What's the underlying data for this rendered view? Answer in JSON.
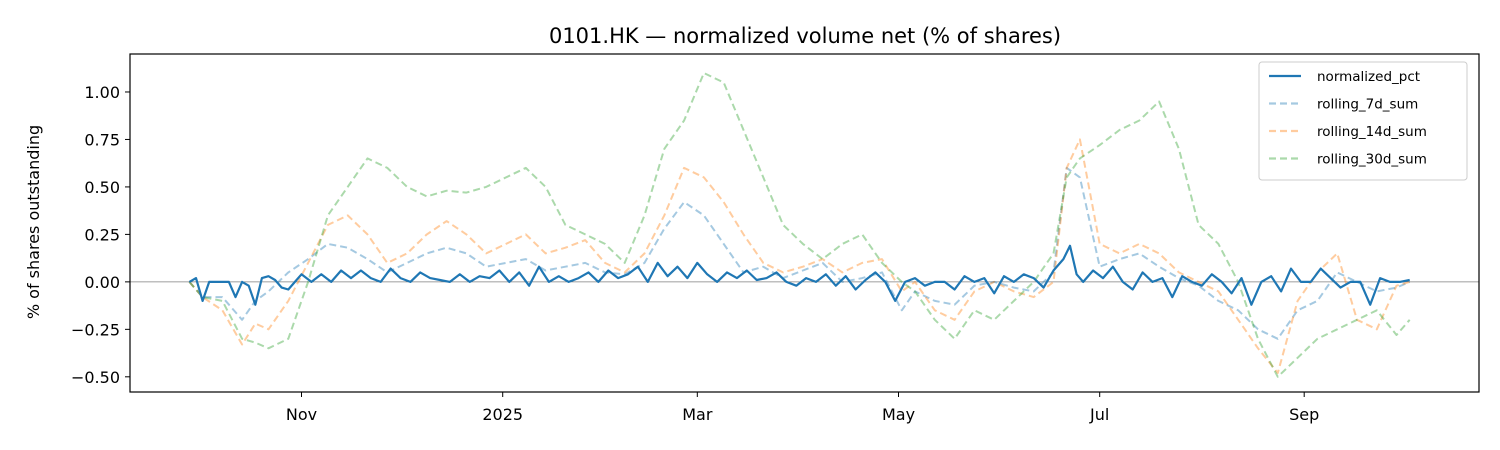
{
  "chart_data": {
    "type": "line",
    "title": "0101.HK — normalized volume net (% of shares)",
    "xlabel": "",
    "ylabel": "% of shares outstanding",
    "ylim": [
      -0.58,
      1.2
    ],
    "xlim": [
      "2024-09-10",
      "2025-10-24"
    ],
    "yticks": [
      -0.5,
      -0.25,
      0.0,
      0.25,
      0.5,
      0.75,
      1.0
    ],
    "ytick_labels": [
      "−0.50",
      "−0.25",
      "0.00",
      "0.25",
      "0.50",
      "0.75",
      "1.00"
    ],
    "xticks": [
      {
        "date": "2024-11-01",
        "label": "Nov"
      },
      {
        "date": "2025-01-01",
        "label": "2025"
      },
      {
        "date": "2025-03-01",
        "label": "Mar"
      },
      {
        "date": "2025-05-01",
        "label": "May"
      },
      {
        "date": "2025-07-01",
        "label": "Jul"
      },
      {
        "date": "2025-09-01",
        "label": "Sep"
      }
    ],
    "zero_line": true,
    "grid": false,
    "legend_position": "top-right",
    "series": [
      {
        "name": "normalized_pct",
        "color": "#1f77b4",
        "style": "solid",
        "x": [
          "2024-09-28",
          "2024-09-30",
          "2024-10-02",
          "2024-10-04",
          "2024-10-06",
          "2024-10-08",
          "2024-10-10",
          "2024-10-12",
          "2024-10-14",
          "2024-10-16",
          "2024-10-18",
          "2024-10-20",
          "2024-10-22",
          "2024-10-24",
          "2024-10-26",
          "2024-10-28",
          "2024-10-30",
          "2024-11-01",
          "2024-11-04",
          "2024-11-07",
          "2024-11-10",
          "2024-11-13",
          "2024-11-16",
          "2024-11-19",
          "2024-11-22",
          "2024-11-25",
          "2024-11-28",
          "2024-12-01",
          "2024-12-04",
          "2024-12-07",
          "2024-12-10",
          "2024-12-13",
          "2024-12-16",
          "2024-12-19",
          "2024-12-22",
          "2024-12-25",
          "2024-12-28",
          "2024-12-31",
          "2025-01-03",
          "2025-01-06",
          "2025-01-09",
          "2025-01-12",
          "2025-01-15",
          "2025-01-18",
          "2025-01-21",
          "2025-01-24",
          "2025-01-27",
          "2025-01-30",
          "2025-02-02",
          "2025-02-05",
          "2025-02-08",
          "2025-02-11",
          "2025-02-14",
          "2025-02-17",
          "2025-02-20",
          "2025-02-23",
          "2025-02-26",
          "2025-03-01",
          "2025-03-04",
          "2025-03-07",
          "2025-03-10",
          "2025-03-13",
          "2025-03-16",
          "2025-03-19",
          "2025-03-22",
          "2025-03-25",
          "2025-03-28",
          "2025-03-31",
          "2025-04-03",
          "2025-04-06",
          "2025-04-09",
          "2025-04-12",
          "2025-04-15",
          "2025-04-18",
          "2025-04-21",
          "2025-04-24",
          "2025-04-27",
          "2025-04-30",
          "2025-05-03",
          "2025-05-06",
          "2025-05-09",
          "2025-05-12",
          "2025-05-15",
          "2025-05-18",
          "2025-05-21",
          "2025-05-24",
          "2025-05-27",
          "2025-05-30",
          "2025-06-02",
          "2025-06-05",
          "2025-06-08",
          "2025-06-11",
          "2025-06-14",
          "2025-06-17",
          "2025-06-20",
          "2025-06-22",
          "2025-06-24",
          "2025-06-26",
          "2025-06-29",
          "2025-07-02",
          "2025-07-05",
          "2025-07-08",
          "2025-07-11",
          "2025-07-14",
          "2025-07-17",
          "2025-07-20",
          "2025-07-23",
          "2025-07-26",
          "2025-07-29",
          "2025-08-01",
          "2025-08-04",
          "2025-08-07",
          "2025-08-10",
          "2025-08-13",
          "2025-08-16",
          "2025-08-19",
          "2025-08-22",
          "2025-08-25",
          "2025-08-28",
          "2025-08-31",
          "2025-09-03",
          "2025-09-06",
          "2025-09-09",
          "2025-09-12",
          "2025-09-15",
          "2025-09-18",
          "2025-09-21",
          "2025-09-24",
          "2025-09-27",
          "2025-09-30",
          "2025-10-03"
        ],
        "values": [
          0.0,
          0.02,
          -0.1,
          0.0,
          0.0,
          0.0,
          0.0,
          -0.08,
          0.0,
          -0.02,
          -0.12,
          0.02,
          0.03,
          0.01,
          -0.03,
          -0.04,
          0.0,
          0.04,
          0.0,
          0.04,
          0.0,
          0.06,
          0.02,
          0.06,
          0.02,
          0.0,
          0.07,
          0.02,
          0.0,
          0.05,
          0.02,
          0.01,
          0.0,
          0.04,
          0.0,
          0.03,
          0.02,
          0.06,
          0.0,
          0.05,
          -0.02,
          0.08,
          0.0,
          0.03,
          0.0,
          0.02,
          0.05,
          0.0,
          0.06,
          0.02,
          0.04,
          0.08,
          0.0,
          0.1,
          0.03,
          0.08,
          0.02,
          0.1,
          0.04,
          0.0,
          0.05,
          0.02,
          0.06,
          0.01,
          0.02,
          0.05,
          0.0,
          -0.02,
          0.02,
          0.0,
          0.04,
          -0.02,
          0.03,
          -0.04,
          0.01,
          0.05,
          0.0,
          -0.1,
          0.0,
          0.02,
          -0.02,
          0.0,
          0.0,
          -0.04,
          0.03,
          0.0,
          0.02,
          -0.06,
          0.03,
          0.0,
          0.04,
          0.02,
          -0.03,
          0.06,
          0.12,
          0.19,
          0.04,
          0.0,
          0.06,
          0.02,
          0.08,
          0.0,
          -0.04,
          0.05,
          0.0,
          0.02,
          -0.08,
          0.03,
          0.0,
          -0.02,
          0.04,
          0.0,
          -0.06,
          0.02,
          -0.12,
          0.0,
          0.03,
          -0.05,
          0.07,
          0.0,
          0.0,
          0.07,
          0.02,
          -0.03,
          0.0,
          0.0,
          -0.12,
          0.02,
          0.0,
          0.0,
          0.01
        ]
      },
      {
        "name": "rolling_7d_sum",
        "color": "#1f77b4",
        "style": "dashed",
        "x": [
          "2024-09-28",
          "2024-10-02",
          "2024-10-08",
          "2024-10-14",
          "2024-10-18",
          "2024-10-22",
          "2024-10-28",
          "2024-11-03",
          "2024-11-09",
          "2024-11-15",
          "2024-11-21",
          "2024-11-27",
          "2024-12-03",
          "2024-12-09",
          "2024-12-15",
          "2024-12-21",
          "2024-12-27",
          "2025-01-02",
          "2025-01-08",
          "2025-01-14",
          "2025-01-20",
          "2025-01-26",
          "2025-02-01",
          "2025-02-07",
          "2025-02-13",
          "2025-02-19",
          "2025-02-25",
          "2025-03-03",
          "2025-03-09",
          "2025-03-15",
          "2025-03-21",
          "2025-03-27",
          "2025-04-02",
          "2025-04-08",
          "2025-04-14",
          "2025-04-20",
          "2025-04-26",
          "2025-05-02",
          "2025-05-06",
          "2025-05-12",
          "2025-05-18",
          "2025-05-24",
          "2025-05-30",
          "2025-06-05",
          "2025-06-11",
          "2025-06-17",
          "2025-06-21",
          "2025-06-25",
          "2025-07-01",
          "2025-07-07",
          "2025-07-13",
          "2025-07-19",
          "2025-07-25",
          "2025-07-31",
          "2025-08-06",
          "2025-08-12",
          "2025-08-18",
          "2025-08-24",
          "2025-08-30",
          "2025-09-05",
          "2025-09-11",
          "2025-09-17",
          "2025-09-23",
          "2025-09-29",
          "2025-10-03"
        ],
        "values": [
          0.0,
          -0.08,
          -0.08,
          -0.2,
          -0.1,
          -0.05,
          0.05,
          0.12,
          0.2,
          0.18,
          0.12,
          0.05,
          0.1,
          0.15,
          0.18,
          0.15,
          0.08,
          0.1,
          0.12,
          0.06,
          0.08,
          0.1,
          0.05,
          0.04,
          0.1,
          0.28,
          0.42,
          0.35,
          0.2,
          0.05,
          0.08,
          0.02,
          0.06,
          0.1,
          0.0,
          0.02,
          0.05,
          -0.15,
          -0.05,
          -0.1,
          -0.12,
          -0.02,
          0.0,
          -0.03,
          -0.05,
          0.05,
          0.6,
          0.55,
          0.08,
          0.12,
          0.15,
          0.08,
          0.02,
          -0.02,
          -0.1,
          -0.15,
          -0.25,
          -0.3,
          -0.15,
          -0.1,
          0.05,
          0.0,
          -0.05,
          -0.03,
          0.0
        ]
      },
      {
        "name": "rolling_14d_sum",
        "color": "#ff7f0e",
        "style": "dashed",
        "x": [
          "2024-09-28",
          "2024-10-02",
          "2024-10-08",
          "2024-10-14",
          "2024-10-18",
          "2024-10-22",
          "2024-10-28",
          "2024-11-03",
          "2024-11-09",
          "2024-11-15",
          "2024-11-21",
          "2024-11-27",
          "2024-12-03",
          "2024-12-09",
          "2024-12-15",
          "2024-12-21",
          "2024-12-27",
          "2025-01-02",
          "2025-01-08",
          "2025-01-14",
          "2025-01-20",
          "2025-01-26",
          "2025-02-01",
          "2025-02-07",
          "2025-02-13",
          "2025-02-19",
          "2025-02-25",
          "2025-03-03",
          "2025-03-09",
          "2025-03-15",
          "2025-03-21",
          "2025-03-27",
          "2025-04-02",
          "2025-04-08",
          "2025-04-14",
          "2025-04-20",
          "2025-04-26",
          "2025-05-02",
          "2025-05-06",
          "2025-05-12",
          "2025-05-18",
          "2025-05-24",
          "2025-05-30",
          "2025-06-05",
          "2025-06-11",
          "2025-06-17",
          "2025-06-21",
          "2025-06-25",
          "2025-07-01",
          "2025-07-07",
          "2025-07-13",
          "2025-07-19",
          "2025-07-25",
          "2025-07-31",
          "2025-08-06",
          "2025-08-12",
          "2025-08-18",
          "2025-08-24",
          "2025-08-30",
          "2025-09-05",
          "2025-09-11",
          "2025-09-17",
          "2025-09-23",
          "2025-09-29",
          "2025-10-03"
        ],
        "values": [
          0.0,
          -0.08,
          -0.15,
          -0.33,
          -0.22,
          -0.25,
          -0.1,
          0.1,
          0.3,
          0.35,
          0.25,
          0.1,
          0.15,
          0.25,
          0.32,
          0.25,
          0.15,
          0.2,
          0.25,
          0.15,
          0.18,
          0.22,
          0.1,
          0.05,
          0.15,
          0.35,
          0.6,
          0.55,
          0.42,
          0.25,
          0.1,
          0.05,
          0.08,
          0.12,
          0.05,
          0.1,
          0.12,
          -0.05,
          0.0,
          -0.15,
          -0.2,
          -0.05,
          0.0,
          -0.05,
          -0.08,
          0.0,
          0.6,
          0.75,
          0.2,
          0.15,
          0.2,
          0.15,
          0.05,
          0.0,
          -0.05,
          -0.2,
          -0.35,
          -0.48,
          -0.1,
          0.05,
          0.15,
          -0.2,
          -0.25,
          -0.02,
          0.0
        ]
      },
      {
        "name": "rolling_30d_sum",
        "color": "#2ca02c",
        "style": "dashed",
        "x": [
          "2024-09-28",
          "2024-10-02",
          "2024-10-08",
          "2024-10-14",
          "2024-10-18",
          "2024-10-22",
          "2024-10-28",
          "2024-11-03",
          "2024-11-09",
          "2024-11-15",
          "2024-11-21",
          "2024-11-27",
          "2024-12-03",
          "2024-12-09",
          "2024-12-15",
          "2024-12-21",
          "2024-12-27",
          "2025-01-02",
          "2025-01-08",
          "2025-01-14",
          "2025-01-20",
          "2025-01-26",
          "2025-02-01",
          "2025-02-07",
          "2025-02-13",
          "2025-02-19",
          "2025-02-25",
          "2025-03-03",
          "2025-03-09",
          "2025-03-15",
          "2025-03-21",
          "2025-03-27",
          "2025-04-02",
          "2025-04-08",
          "2025-04-14",
          "2025-04-20",
          "2025-04-26",
          "2025-05-02",
          "2025-05-06",
          "2025-05-12",
          "2025-05-18",
          "2025-05-24",
          "2025-05-30",
          "2025-06-05",
          "2025-06-11",
          "2025-06-17",
          "2025-06-21",
          "2025-06-25",
          "2025-07-01",
          "2025-07-07",
          "2025-07-13",
          "2025-07-19",
          "2025-07-25",
          "2025-07-31",
          "2025-08-06",
          "2025-08-12",
          "2025-08-18",
          "2025-08-24",
          "2025-08-30",
          "2025-09-05",
          "2025-09-11",
          "2025-09-17",
          "2025-09-23",
          "2025-09-29",
          "2025-10-03"
        ],
        "values": [
          0.0,
          -0.08,
          -0.1,
          -0.3,
          -0.32,
          -0.35,
          -0.3,
          0.0,
          0.35,
          0.5,
          0.65,
          0.6,
          0.5,
          0.45,
          0.48,
          0.47,
          0.5,
          0.55,
          0.6,
          0.5,
          0.3,
          0.25,
          0.2,
          0.1,
          0.35,
          0.7,
          0.85,
          1.1,
          1.05,
          0.8,
          0.55,
          0.3,
          0.2,
          0.12,
          0.2,
          0.25,
          0.1,
          0.0,
          -0.05,
          -0.2,
          -0.3,
          -0.15,
          -0.2,
          -0.1,
          0.0,
          0.15,
          0.55,
          0.65,
          0.72,
          0.8,
          0.85,
          0.95,
          0.7,
          0.3,
          0.2,
          0.0,
          -0.3,
          -0.5,
          -0.4,
          -0.3,
          -0.25,
          -0.2,
          -0.15,
          -0.28,
          -0.2
        ]
      }
    ]
  }
}
